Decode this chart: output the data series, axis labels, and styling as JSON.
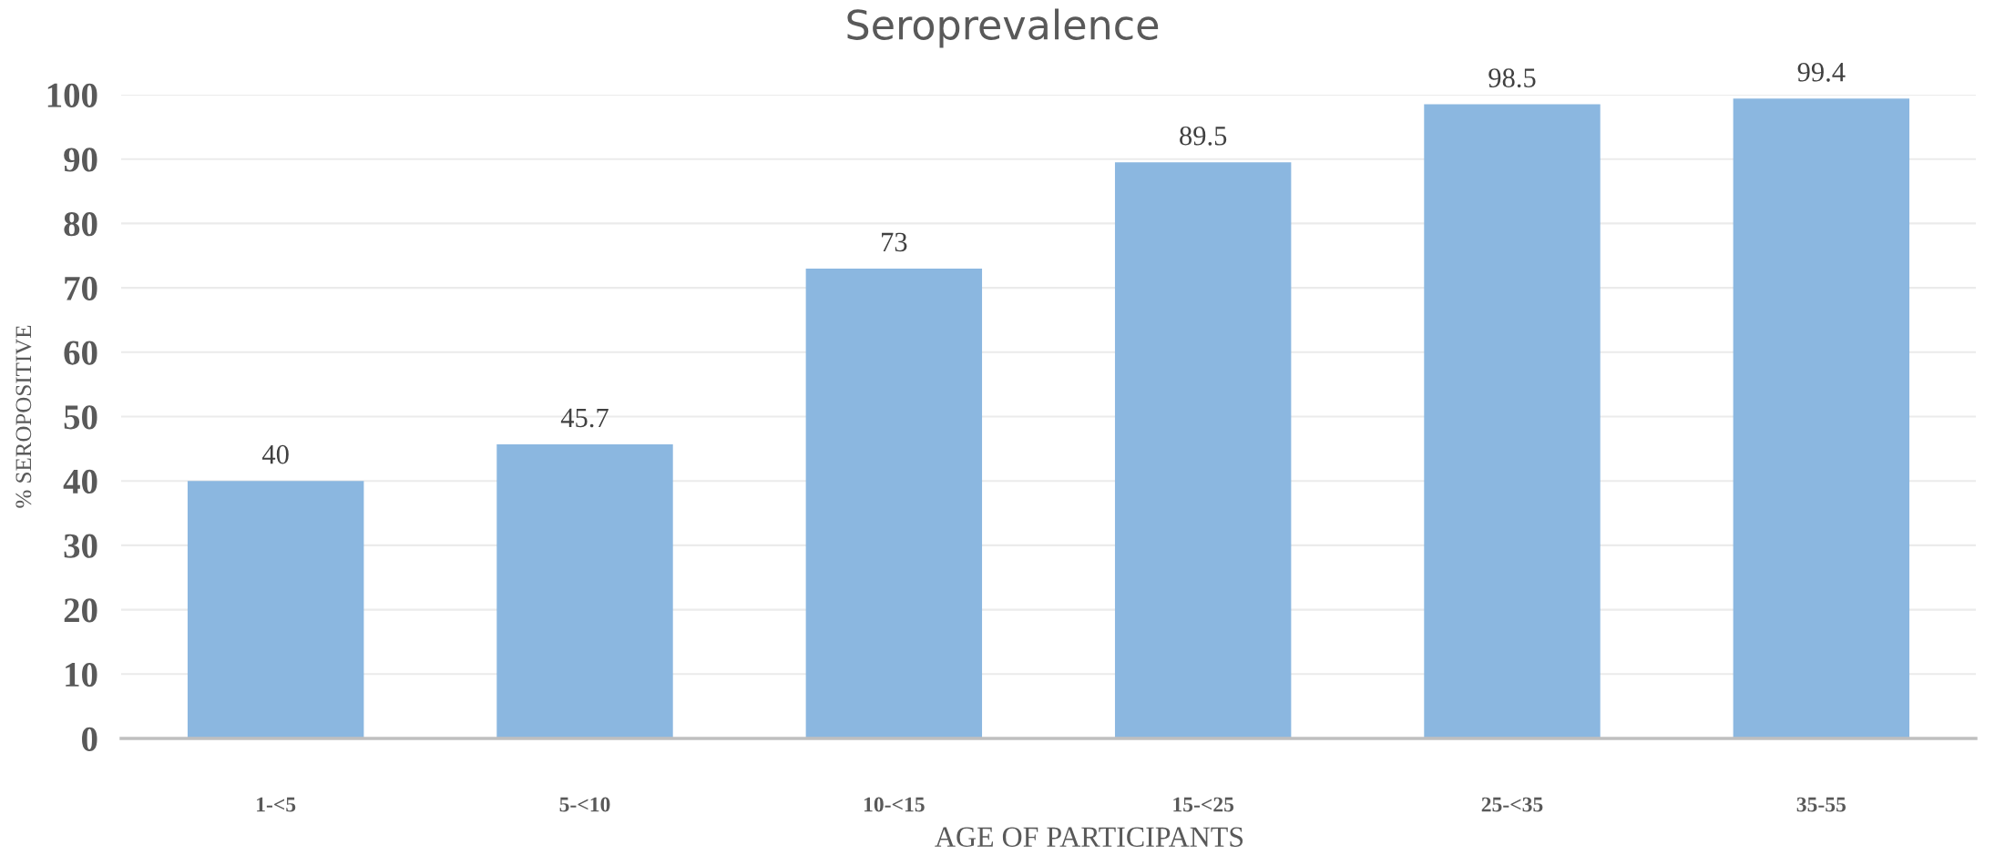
{
  "chart_data": {
    "type": "bar",
    "title": "Seroprevalence",
    "xlabel": "AGE OF PARTICIPANTS",
    "ylabel": "% SEROPOSITIVE",
    "categories": [
      "1-<5",
      "5-<10",
      "10-<15",
      "15-<25",
      "25-<35",
      "35-55"
    ],
    "values": [
      40,
      45.7,
      73,
      89.5,
      98.5,
      99.4
    ],
    "color": "#8bb7e0",
    "ylim": [
      0,
      100
    ],
    "yticks": [
      0,
      10,
      20,
      30,
      40,
      50,
      60,
      70,
      80,
      90,
      100
    ],
    "grid": "y",
    "data_labels": true
  }
}
